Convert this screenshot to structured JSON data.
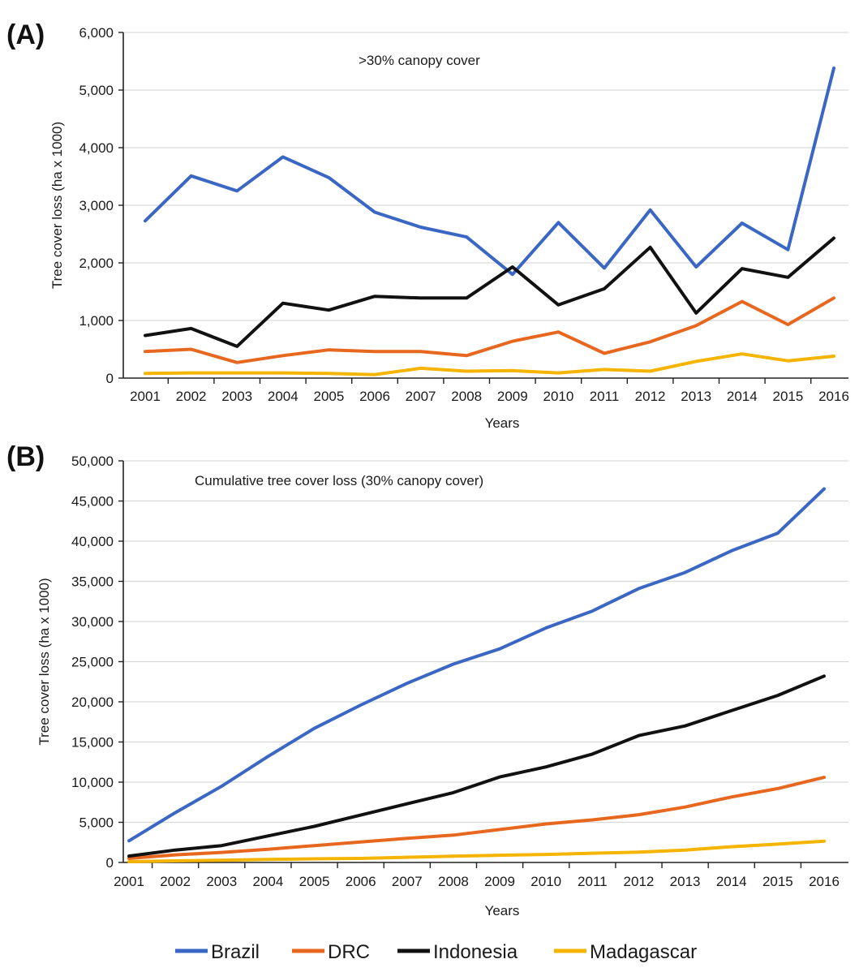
{
  "colors": {
    "Brazil": "#3a67c4",
    "DRC": "#e8671e",
    "Indonesia": "#111111",
    "Madagascar": "#f5b400"
  },
  "legend": {
    "position": "bottom",
    "entries": [
      "Brazil",
      "DRC",
      "Indonesia",
      "Madagascar"
    ]
  },
  "chart_data": [
    {
      "panel": "(A)",
      "type": "line",
      "title": ">30% canopy cover",
      "xlabel": "Years",
      "ylabel": "Tree cover loss (ha x 1000)",
      "ylim": [
        0,
        6000
      ],
      "yticks": [
        "0",
        "1,000",
        "2,000",
        "3,000",
        "4,000",
        "5,000",
        "6,000"
      ],
      "grid": true,
      "categories": [
        "2001",
        "2002",
        "2003",
        "2004",
        "2005",
        "2006",
        "2007",
        "2008",
        "2009",
        "2010",
        "2011",
        "2012",
        "2013",
        "2014",
        "2015",
        "2016"
      ],
      "series": [
        {
          "name": "Brazil",
          "values": [
            2730,
            3510,
            3250,
            3840,
            3480,
            2880,
            2620,
            2450,
            1800,
            2700,
            1910,
            2920,
            1930,
            2690,
            2230,
            5380
          ]
        },
        {
          "name": "DRC",
          "values": [
            460,
            500,
            270,
            390,
            490,
            460,
            460,
            390,
            640,
            800,
            430,
            630,
            910,
            1330,
            930,
            1390
          ]
        },
        {
          "name": "Indonesia",
          "values": [
            740,
            860,
            550,
            1300,
            1180,
            1420,
            1390,
            1390,
            1930,
            1270,
            1550,
            2270,
            1130,
            1900,
            1750,
            2430
          ]
        },
        {
          "name": "Madagascar",
          "values": [
            80,
            90,
            90,
            90,
            80,
            60,
            170,
            120,
            130,
            90,
            150,
            120,
            290,
            420,
            300,
            380
          ]
        }
      ]
    },
    {
      "panel": "(B)",
      "type": "line",
      "title": "Cumulative tree cover loss (30% canopy cover)",
      "xlabel": "Years",
      "ylabel": "Tree cover loss (ha x 1000)",
      "ylim": [
        0,
        50000
      ],
      "yticks": [
        "0",
        "5,000",
        "10,000",
        "15,000",
        "20,000",
        "25,000",
        "30,000",
        "35,000",
        "40,000",
        "45,000",
        "50,000"
      ],
      "grid": true,
      "categories": [
        "2001",
        "2002",
        "2003",
        "2004",
        "2005",
        "2006",
        "2007",
        "2008",
        "2009",
        "2010",
        "2011",
        "2012",
        "2013",
        "2014",
        "2015",
        "2016"
      ],
      "series": [
        {
          "name": "Brazil",
          "values": [
            2700,
            6200,
            9500,
            13200,
            16700,
            19600,
            22300,
            24700,
            26600,
            29200,
            31300,
            34100,
            36100,
            38800,
            41000,
            46500
          ]
        },
        {
          "name": "DRC",
          "values": [
            500,
            950,
            1250,
            1650,
            2100,
            2550,
            3000,
            3400,
            4100,
            4800,
            5300,
            5950,
            6900,
            8150,
            9200,
            10600
          ]
        },
        {
          "name": "Indonesia",
          "values": [
            800,
            1550,
            2100,
            3300,
            4500,
            5900,
            7300,
            8700,
            10650,
            11900,
            13500,
            15800,
            17000,
            18900,
            20800,
            23200
          ]
        },
        {
          "name": "Madagascar",
          "values": [
            100,
            200,
            280,
            370,
            450,
            500,
            650,
            780,
            900,
            1000,
            1150,
            1280,
            1550,
            1960,
            2280,
            2660
          ]
        }
      ]
    }
  ]
}
